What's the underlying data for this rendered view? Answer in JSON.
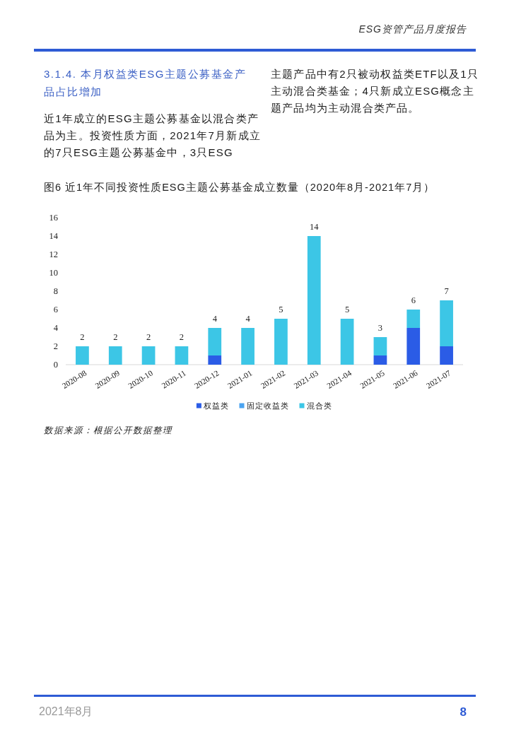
{
  "chart_data": {
    "type": "bar",
    "title": "图6 近1年不同投资性质ESG主题公募基金成立数量（2020年8月-2021年7月）",
    "subtitle": "3.1.4. 本月权益类ESG主题公募基金产品占比增加",
    "categories": [
      "2020-08",
      "2020-09",
      "2020-10",
      "2020-11",
      "2020-12",
      "2021-01",
      "2021-02",
      "2021-03",
      "2021-04",
      "2021-05",
      "2021-06",
      "2021-07"
    ],
    "series": [
      {
        "name": "权益类",
        "color": "#2b5ce6",
        "values": [
          0,
          0,
          0,
          0,
          1,
          0,
          0,
          0,
          0,
          1,
          4,
          2
        ]
      },
      {
        "name": "固定收益类",
        "color": "#4ba3f0",
        "values": [
          0,
          0,
          0,
          0,
          0,
          0,
          0,
          0,
          0,
          0,
          0,
          0
        ]
      },
      {
        "name": "混合类",
        "color": "#3cc6e6",
        "values": [
          2,
          2,
          2,
          2,
          3,
          4,
          5,
          14,
          5,
          2,
          2,
          5
        ]
      }
    ],
    "stacked": true,
    "totals": [
      "2",
      "2",
      "2",
      "2",
      "4",
      "4",
      "5",
      "14",
      "5",
      "3",
      "6",
      "7"
    ],
    "ylim": [
      0,
      16
    ],
    "yticks": [
      0,
      2,
      4,
      6,
      8,
      10,
      12,
      14,
      16
    ],
    "legend": "bottom",
    "annotations": [
      "ESG资管产品月度报告",
      "近1年成立的ESG主题公募基金以混合类产品为主。投资性质方面，2021年7月新成立的7只ESG主题公募基金中，3只ESG",
      "主题产品中有2只被动权益类ETF以及1只主动混合类基金；4只新成立ESG概念主题产品均为主动混合类产品。",
      "数据来源：根据公开数据整理",
      "2021年8月",
      "8"
    ]
  }
}
